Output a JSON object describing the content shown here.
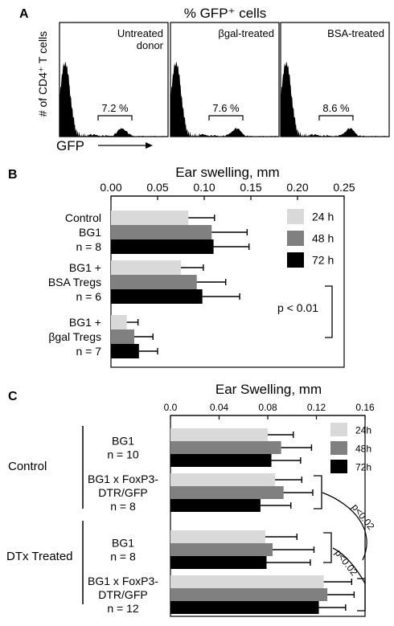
{
  "chart_data": [
    {
      "panel": "A",
      "type": "histogram",
      "title": "% GFP⁺ cells",
      "ylabel": "# of CD4⁺ T cells",
      "xlabel": "GFP",
      "panels": [
        {
          "label": "Untreated donor",
          "label_lines": [
            "Untreated",
            "donor"
          ],
          "gate": "7.2 %"
        },
        {
          "label": "βgal-treated",
          "label_lines": [
            "βgal-treated"
          ],
          "gate": "7.6 %"
        },
        {
          "label": "BSA-treated",
          "label_lines": [
            "BSA-treated"
          ],
          "gate": "8.6 %"
        }
      ]
    },
    {
      "panel": "B",
      "type": "bar",
      "orientation": "horizontal",
      "title": "Ear swelling, mm",
      "xlim": [
        0,
        0.25
      ],
      "xticks": [
        "0.00",
        "0.05",
        "0.10",
        "0.15",
        "0.20",
        "0.25"
      ],
      "groups": [
        {
          "label_lines": [
            "Control",
            "BG1",
            "n = 8"
          ]
        },
        {
          "label_lines": [
            "BG1 +",
            "BSA Tregs",
            "n = 6"
          ]
        },
        {
          "label_lines": [
            "BG1 +",
            "βgal Tregs",
            "n = 7"
          ]
        }
      ],
      "series": [
        {
          "name": "24 h",
          "color": "#d9d9d9",
          "values": [
            0.083,
            0.075,
            0.017
          ],
          "errors": [
            0.028,
            0.024,
            0.012
          ]
        },
        {
          "name": "48 h",
          "color": "#808080",
          "values": [
            0.108,
            0.092,
            0.025
          ],
          "errors": [
            0.038,
            0.031,
            0.02
          ]
        },
        {
          "name": "72 h",
          "color": "#000000",
          "values": [
            0.11,
            0.098,
            0.03
          ],
          "errors": [
            0.038,
            0.04,
            0.02
          ]
        }
      ],
      "annotation": "p < 0.01"
    },
    {
      "panel": "C",
      "type": "bar",
      "orientation": "horizontal",
      "title": "Ear Swelling, mm",
      "xlim": [
        0,
        0.16
      ],
      "xticks": [
        "0.0",
        "0.04",
        "0.08",
        "0.12",
        "0.16"
      ],
      "sections": [
        "Control",
        "DTx Treated"
      ],
      "groups": [
        {
          "section": "Control",
          "label_lines": [
            "BG1",
            "n = 10"
          ]
        },
        {
          "section": "Control",
          "label_lines": [
            "BG1 x FoxP3-",
            "DTR/GFP",
            "n = 8"
          ]
        },
        {
          "section": "DTx Treated",
          "label_lines": [
            "BG1",
            "n = 8"
          ]
        },
        {
          "section": "DTx Treated",
          "label_lines": [
            "BG1 x FoxP3-",
            "DTR/GFP",
            "n = 12"
          ]
        }
      ],
      "series": [
        {
          "name": "24h",
          "color": "#d9d9d9",
          "values": [
            0.08,
            0.086,
            0.078,
            0.126
          ],
          "errors": [
            0.021,
            0.022,
            0.026,
            0.023
          ]
        },
        {
          "name": "48h",
          "color": "#808080",
          "values": [
            0.091,
            0.093,
            0.084,
            0.129
          ],
          "errors": [
            0.025,
            0.024,
            0.034,
            0.022
          ]
        },
        {
          "name": "72h",
          "color": "#000000",
          "values": [
            0.083,
            0.074,
            0.079,
            0.122
          ],
          "errors": [
            0.024,
            0.025,
            0.036,
            0.022
          ]
        }
      ],
      "annotations": [
        "p<0.02",
        "p<0.02"
      ]
    }
  ],
  "panel_letters": [
    "A",
    "B",
    "C"
  ]
}
